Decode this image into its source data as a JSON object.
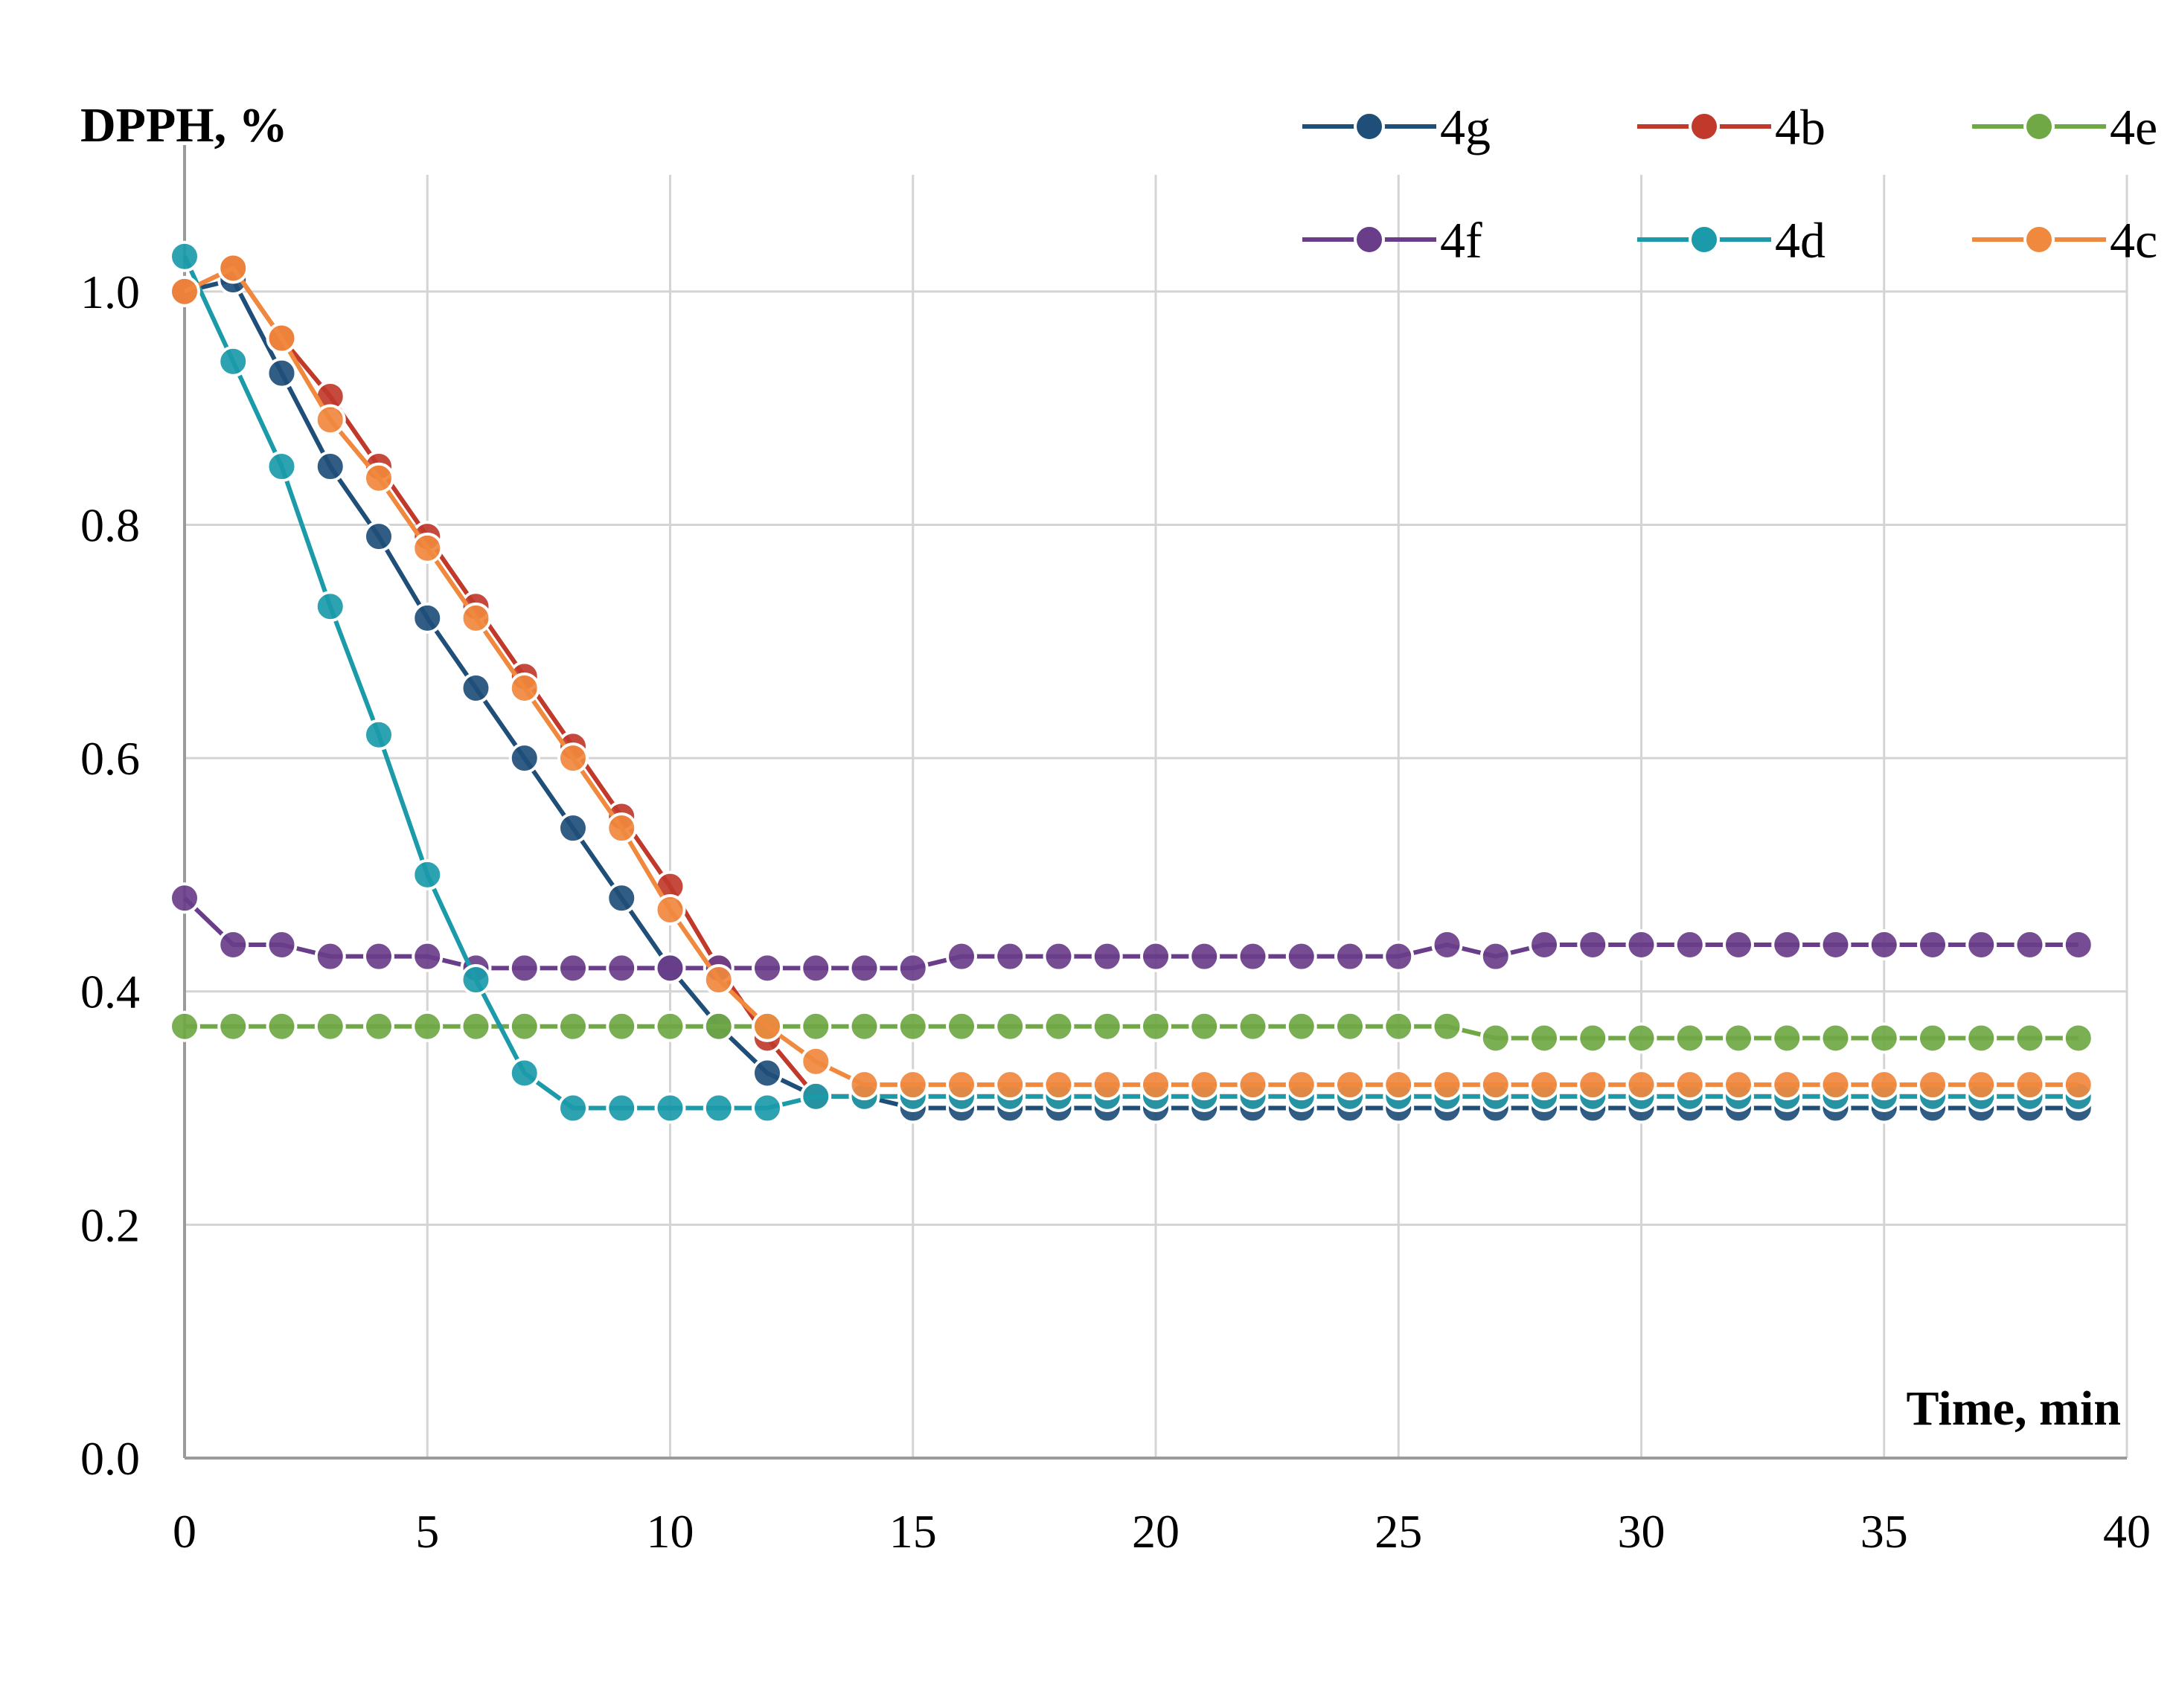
{
  "chart_data": {
    "type": "line",
    "title": "",
    "ylabel": "DPPH, %",
    "xlabel": "Time, min",
    "xlim": [
      0,
      40
    ],
    "ylim": [
      0,
      1.1
    ],
    "x_ticks": [
      0,
      5,
      10,
      15,
      20,
      25,
      30,
      35,
      40
    ],
    "y_ticks": [
      0.0,
      0.2,
      0.4,
      0.6,
      0.8,
      1.0
    ],
    "x_tick_labels": [
      "0",
      "5",
      "10",
      "15",
      "20",
      "25",
      "30",
      "35",
      "40"
    ],
    "y_tick_labels": [
      "0.0",
      "0.2",
      "0.4",
      "0.6",
      "0.8",
      "1.0"
    ],
    "grid": true,
    "legend_position": "top-right",
    "x": [
      0,
      1,
      2,
      3,
      4,
      5,
      6,
      7,
      8,
      9,
      10,
      11,
      12,
      13,
      14,
      15,
      16,
      17,
      18,
      19,
      20,
      21,
      22,
      23,
      24,
      25,
      26,
      27,
      28,
      29,
      30,
      31,
      32,
      33,
      34,
      35,
      36,
      37,
      38,
      39
    ],
    "series": [
      {
        "name": "4g",
        "color": "#1f4e79",
        "values": [
          1.0,
          1.01,
          0.93,
          0.85,
          0.79,
          0.72,
          0.66,
          0.6,
          0.54,
          0.48,
          0.42,
          0.37,
          0.33,
          0.31,
          0.31,
          0.3,
          0.3,
          0.3,
          0.3,
          0.3,
          0.3,
          0.3,
          0.3,
          0.3,
          0.3,
          0.3,
          0.3,
          0.3,
          0.3,
          0.3,
          0.3,
          0.3,
          0.3,
          0.3,
          0.3,
          0.3,
          0.3,
          0.3,
          0.3,
          0.3
        ]
      },
      {
        "name": "4b",
        "color": "#c0392b",
        "values": [
          1.0,
          1.02,
          0.96,
          0.91,
          0.85,
          0.79,
          0.73,
          0.67,
          0.61,
          0.55,
          0.49,
          0.42,
          0.36,
          0.31,
          0.31,
          0.31,
          0.31,
          0.31,
          0.31,
          0.31,
          0.31,
          0.31,
          0.31,
          0.31,
          0.31,
          0.31,
          0.31,
          0.31,
          0.31,
          0.31,
          0.31,
          0.31,
          0.31,
          0.31,
          0.31,
          0.31,
          0.31,
          0.31,
          0.31,
          0.31
        ]
      },
      {
        "name": "4e",
        "color": "#70a845",
        "values": [
          0.37,
          0.37,
          0.37,
          0.37,
          0.37,
          0.37,
          0.37,
          0.37,
          0.37,
          0.37,
          0.37,
          0.37,
          0.37,
          0.37,
          0.37,
          0.37,
          0.37,
          0.37,
          0.37,
          0.37,
          0.37,
          0.37,
          0.37,
          0.37,
          0.37,
          0.37,
          0.37,
          0.36,
          0.36,
          0.36,
          0.36,
          0.36,
          0.36,
          0.36,
          0.36,
          0.36,
          0.36,
          0.36,
          0.36,
          0.36
        ]
      },
      {
        "name": "4f",
        "color": "#6a3d8a",
        "values": [
          0.48,
          0.44,
          0.44,
          0.43,
          0.43,
          0.43,
          0.42,
          0.42,
          0.42,
          0.42,
          0.42,
          0.42,
          0.42,
          0.42,
          0.42,
          0.42,
          0.43,
          0.43,
          0.43,
          0.43,
          0.43,
          0.43,
          0.43,
          0.43,
          0.43,
          0.43,
          0.44,
          0.43,
          0.44,
          0.44,
          0.44,
          0.44,
          0.44,
          0.44,
          0.44,
          0.44,
          0.44,
          0.44,
          0.44,
          0.44
        ]
      },
      {
        "name": "4d",
        "color": "#1b9aaa",
        "values": [
          1.03,
          0.94,
          0.85,
          0.73,
          0.62,
          0.5,
          0.41,
          0.33,
          0.3,
          0.3,
          0.3,
          0.3,
          0.3,
          0.31,
          0.31,
          0.31,
          0.31,
          0.31,
          0.31,
          0.31,
          0.31,
          0.31,
          0.31,
          0.31,
          0.31,
          0.31,
          0.31,
          0.31,
          0.31,
          0.31,
          0.31,
          0.31,
          0.31,
          0.31,
          0.31,
          0.31,
          0.31,
          0.31,
          0.31,
          0.31
        ]
      },
      {
        "name": "4c",
        "color": "#f0883e",
        "values": [
          1.0,
          1.02,
          0.96,
          0.89,
          0.84,
          0.78,
          0.72,
          0.66,
          0.6,
          0.54,
          0.47,
          0.41,
          0.37,
          0.34,
          0.32,
          0.32,
          0.32,
          0.32,
          0.32,
          0.32,
          0.32,
          0.32,
          0.32,
          0.32,
          0.32,
          0.32,
          0.32,
          0.32,
          0.32,
          0.32,
          0.32,
          0.32,
          0.32,
          0.32,
          0.32,
          0.32,
          0.32,
          0.32,
          0.32,
          0.32
        ]
      }
    ]
  }
}
